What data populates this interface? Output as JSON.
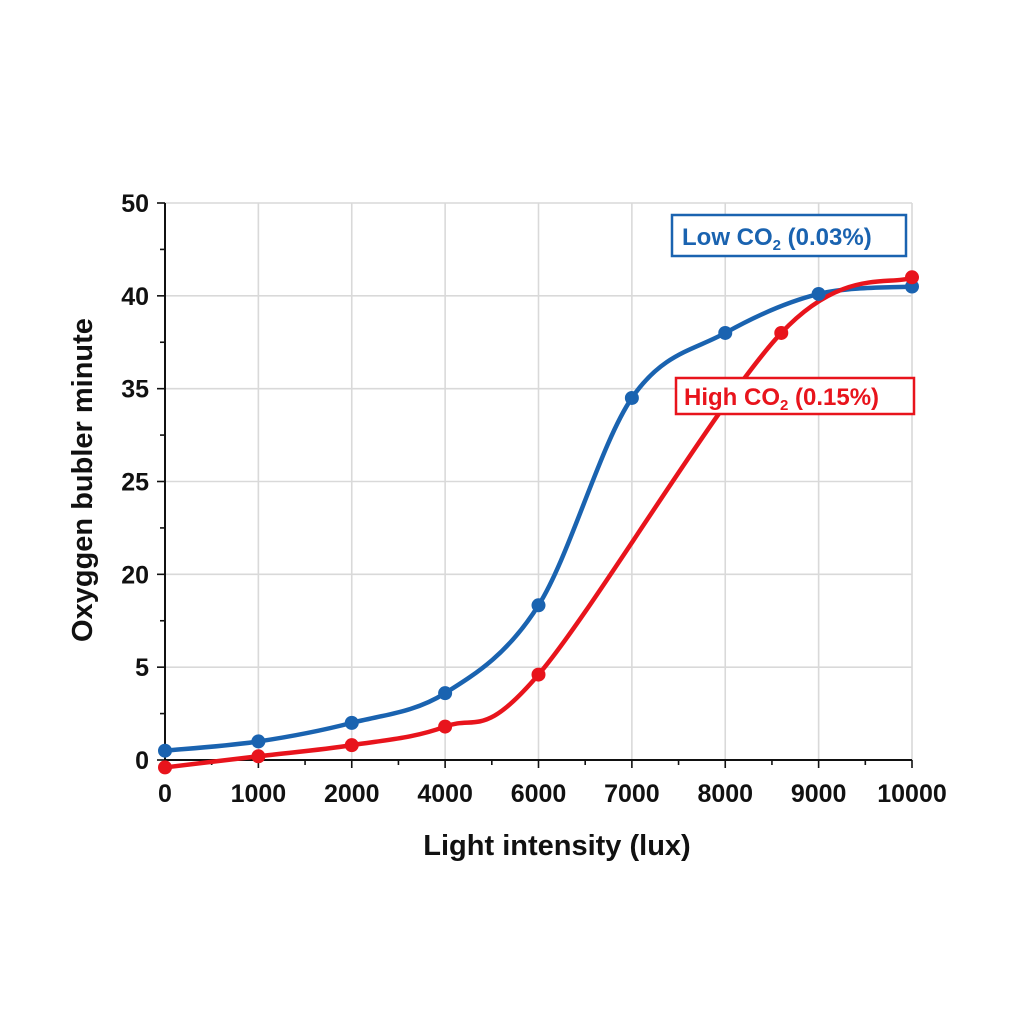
{
  "chart_data": {
    "type": "line",
    "title": "",
    "xlabel": "Light intensity (lux)",
    "ylabel": "Oxyggen bubler minute",
    "x_ticks": [
      "0",
      "1000",
      "2000",
      "4000",
      "6000",
      "7000",
      "8000",
      "9000",
      "10000"
    ],
    "y_ticks": [
      "0",
      "5",
      "20",
      "25",
      "35",
      "40",
      "50"
    ],
    "grid": true,
    "series": [
      {
        "name_main": "Low CO",
        "name_sub": "2",
        "name_tail": " (0.03%)",
        "color": "#1a63b0",
        "points": [
          {
            "x": "0",
            "y": 0.5
          },
          {
            "x": "1000",
            "y": 1.0
          },
          {
            "x": "2000",
            "y": 2.0
          },
          {
            "x": "4000",
            "y": 3.6
          },
          {
            "x": "6000",
            "y": 15.0
          },
          {
            "x": "7000",
            "y": 34.0
          },
          {
            "x": "8000",
            "y": 38.0
          },
          {
            "x": "9000",
            "y": 40.2
          },
          {
            "x": "10000",
            "y": 41.0
          }
        ]
      },
      {
        "name_main": "High CO",
        "name_sub": "2",
        "name_tail": " (0.15%)",
        "color": "#e8141c",
        "points": [
          {
            "x": "0",
            "y": -0.4
          },
          {
            "x": "1000",
            "y": 0.2
          },
          {
            "x": "2000",
            "y": 0.8
          },
          {
            "x": "4000",
            "y": 1.8
          },
          {
            "x": "6000",
            "y": 4.6
          },
          {
            "x": "8600",
            "y": 38.0
          },
          {
            "x": "10000",
            "y": 42.0
          }
        ]
      }
    ],
    "legend_placement": "inline-right"
  }
}
